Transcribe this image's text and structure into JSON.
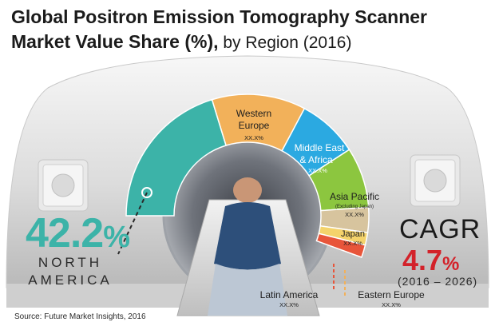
{
  "title": {
    "line1": "Global Positron Emission Tomography Scanner",
    "line2_bold": "Market Value Share (%),",
    "line2_rest": " by Region (2016)"
  },
  "colors": {
    "north_america": "#3cb3a8",
    "western_europe": "#f2b15a",
    "middle_east_africa": "#2ba9e1",
    "asia_pacific": "#8cc63f",
    "japan": "#d7c49e",
    "eastern_europe": "#f4d36b",
    "latin_america": "#e8553a",
    "cagr": "#d3222a"
  },
  "chart_data": {
    "type": "pie",
    "title": "Global Positron Emission Tomography Scanner Market Value Share (%), by Region (2016)",
    "style": "half-donut",
    "segments": [
      {
        "key": "north_america",
        "name": "North America",
        "value_label": "42.2%",
        "value": 42.2
      },
      {
        "key": "western_europe",
        "name": "Western Europe",
        "value_label": "XX.X%",
        "value": null
      },
      {
        "key": "middle_east_africa",
        "name": "Middle East & Africa",
        "value_label": "XX.X%",
        "value": null
      },
      {
        "key": "asia_pacific",
        "name": "Asia Pacific (Excluding Japan)",
        "value_label": "XX.X%",
        "value": null
      },
      {
        "key": "japan",
        "name": "Japan",
        "value_label": "XX.X%",
        "value": null
      },
      {
        "key": "eastern_europe",
        "name": "Eastern Europe",
        "value_label": "XX.X%",
        "value": null
      },
      {
        "key": "latin_america",
        "name": "Latin America",
        "value_label": "XX.X%",
        "value": null
      }
    ],
    "cagr": {
      "label": "CAGR",
      "value": 4.7,
      "value_text": "4.7",
      "unit": "%",
      "period": "(2016 – 2026)"
    }
  },
  "labels": {
    "na_value": "42.2",
    "na_pct": "%",
    "na_line1": "NORTH",
    "na_line2": "AMERICA",
    "we_line1": "Western",
    "we_line2": "Europe",
    "mea_line1": "Middle East",
    "mea_line2": "& Africa",
    "apac_line1": "Asia Pacific",
    "apac_line2": "(Excluding Japan)",
    "japan": "Japan",
    "latin_america": "Latin America",
    "eastern_europe": "Eastern Europe",
    "placeholder": "XX.X%"
  },
  "source": "Source: Future Market Insights, 2016"
}
